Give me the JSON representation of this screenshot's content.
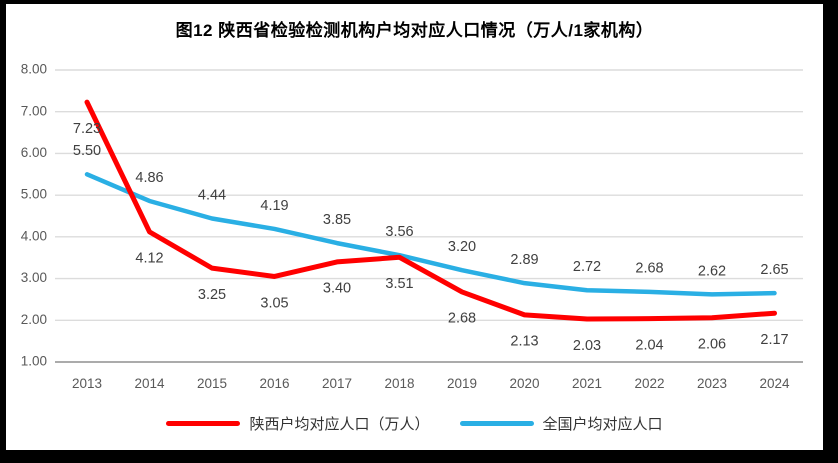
{
  "chart_data": {
    "type": "line",
    "title": "图12 陕西省检验检测机构户均对应人口情况（万人/1家机构）",
    "categories": [
      "2013",
      "2014",
      "2015",
      "2016",
      "2017",
      "2018",
      "2019",
      "2020",
      "2021",
      "2022",
      "2023",
      "2024"
    ],
    "series": [
      {
        "key": "shaanxi",
        "name": "陕西户均对应人口（万人）",
        "color": "#FF0000",
        "label_position": "below",
        "values": [
          7.23,
          4.12,
          3.25,
          3.05,
          3.4,
          3.51,
          2.68,
          2.13,
          2.03,
          2.04,
          2.06,
          2.17
        ]
      },
      {
        "key": "national",
        "name": "全国户均对应人口",
        "color": "#2AAFE4",
        "label_position": "above",
        "values": [
          5.5,
          4.86,
          4.44,
          4.19,
          3.85,
          3.56,
          3.2,
          2.89,
          2.72,
          2.68,
          2.62,
          2.65
        ]
      }
    ],
    "ylim": [
      1.0,
      8.0
    ],
    "ytick_step": 1.0,
    "ytick_labels": [
      "1.00",
      "2.00",
      "3.00",
      "4.00",
      "5.00",
      "6.00",
      "7.00",
      "8.00"
    ],
    "grid": true,
    "legend_position": "bottom",
    "colors": {
      "gridline": "#DCDCDC",
      "axis_line": "#ABABAB",
      "tick_text": "#595959",
      "data_label_text": "#404040"
    }
  }
}
